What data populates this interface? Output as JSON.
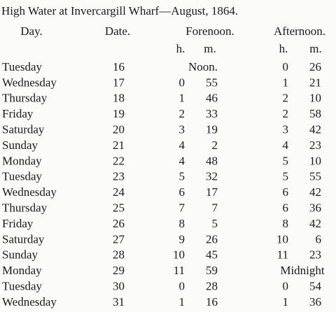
{
  "title": "High Water at Invercargill Wharf—August, 1864.",
  "headers": {
    "day": "Day.",
    "date": "Date.",
    "forenoon": "Forenoon.",
    "afternoon": "Afternoon.",
    "forenoon_units": [
      "h.",
      "m."
    ],
    "afternoon_units": [
      "h.",
      "m."
    ]
  },
  "rows": [
    {
      "day": "Tuesday",
      "date": 16,
      "forenoon": "Noon.",
      "afternoon": [
        0,
        26
      ]
    },
    {
      "day": "Wednesday",
      "date": 17,
      "forenoon": [
        0,
        55
      ],
      "afternoon": [
        1,
        21
      ]
    },
    {
      "day": "Thursday",
      "date": 18,
      "forenoon": [
        1,
        46
      ],
      "afternoon": [
        2,
        10
      ]
    },
    {
      "day": "Friday",
      "date": 19,
      "forenoon": [
        2,
        33
      ],
      "afternoon": [
        2,
        58
      ]
    },
    {
      "day": "Saturday",
      "date": 20,
      "forenoon": [
        3,
        19
      ],
      "afternoon": [
        3,
        42
      ]
    },
    {
      "day": "Sunday",
      "date": 21,
      "forenoon": [
        4,
        2
      ],
      "afternoon": [
        4,
        23
      ]
    },
    {
      "day": "Monday",
      "date": 22,
      "forenoon": [
        4,
        48
      ],
      "afternoon": [
        5,
        10
      ]
    },
    {
      "day": "Tuesday",
      "date": 23,
      "forenoon": [
        5,
        32
      ],
      "afternoon": [
        5,
        55
      ]
    },
    {
      "day": "Wednesday",
      "date": 24,
      "forenoon": [
        6,
        17
      ],
      "afternoon": [
        6,
        42
      ]
    },
    {
      "day": "Thursday",
      "date": 25,
      "forenoon": [
        7,
        7
      ],
      "afternoon": [
        6,
        36
      ]
    },
    {
      "day": "Friday",
      "date": 26,
      "forenoon": [
        8,
        5
      ],
      "afternoon": [
        8,
        42
      ]
    },
    {
      "day": "Saturday",
      "date": 27,
      "forenoon": [
        9,
        26
      ],
      "afternoon": [
        10,
        6
      ]
    },
    {
      "day": "Sunday",
      "date": 28,
      "forenoon": [
        10,
        45
      ],
      "afternoon": [
        11,
        23
      ]
    },
    {
      "day": "Monday",
      "date": 29,
      "forenoon": [
        11,
        59
      ],
      "afternoon": "Midnight"
    },
    {
      "day": "Tuesday",
      "date": 30,
      "forenoon": [
        0,
        28
      ],
      "afternoon": [
        0,
        54
      ]
    },
    {
      "day": "Wednesday",
      "date": 31,
      "forenoon": [
        1,
        16
      ],
      "afternoon": [
        1,
        36
      ]
    }
  ]
}
